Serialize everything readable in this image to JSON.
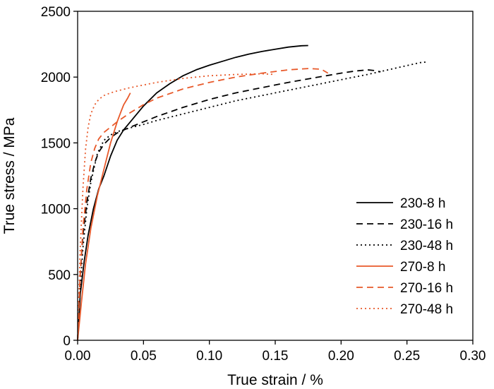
{
  "chart_data": {
    "type": "line",
    "xlabel": "True strain / %",
    "ylabel": "True stress / MPa",
    "xlim": [
      0,
      0.3
    ],
    "ylim": [
      0,
      2500
    ],
    "x_ticks": [
      "0.00",
      "0.05",
      "0.10",
      "0.15",
      "0.20",
      "0.25",
      "0.30"
    ],
    "y_ticks": [
      "0",
      "500",
      "1000",
      "1500",
      "2000",
      "2500"
    ],
    "grid": false,
    "legend_position": "bottom-right",
    "series": [
      {
        "name": "230-8 h",
        "color": "#000000",
        "dash": "solid",
        "x": [
          0,
          0.002,
          0.005,
          0.008,
          0.012,
          0.016,
          0.02,
          0.025,
          0.03,
          0.035,
          0.04,
          0.05,
          0.06,
          0.07,
          0.08,
          0.09,
          0.1,
          0.11,
          0.12,
          0.13,
          0.14,
          0.15,
          0.16,
          0.17,
          0.175
        ],
        "y": [
          0,
          350,
          600,
          800,
          1000,
          1150,
          1250,
          1400,
          1520,
          1600,
          1660,
          1780,
          1880,
          1950,
          2010,
          2055,
          2090,
          2120,
          2150,
          2175,
          2195,
          2212,
          2228,
          2238,
          2240
        ]
      },
      {
        "name": "230-16 h",
        "color": "#000000",
        "dash": "dashed",
        "x": [
          0,
          0.002,
          0.004,
          0.007,
          0.01,
          0.013,
          0.016,
          0.02,
          0.025,
          0.03,
          0.04,
          0.05,
          0.06,
          0.08,
          0.1,
          0.12,
          0.14,
          0.16,
          0.18,
          0.2,
          0.21,
          0.22,
          0.225,
          0.23
        ],
        "y": [
          0,
          500,
          800,
          1050,
          1230,
          1350,
          1430,
          1490,
          1540,
          1575,
          1620,
          1660,
          1700,
          1770,
          1830,
          1880,
          1920,
          1960,
          1995,
          2030,
          2045,
          2055,
          2050,
          2040
        ]
      },
      {
        "name": "230-48 h",
        "color": "#000000",
        "dash": "dotted",
        "x": [
          0,
          0.002,
          0.004,
          0.007,
          0.01,
          0.015,
          0.02,
          0.025,
          0.03,
          0.04,
          0.05,
          0.06,
          0.08,
          0.1,
          0.12,
          0.14,
          0.16,
          0.18,
          0.2,
          0.22,
          0.24,
          0.26,
          0.265
        ],
        "y": [
          0,
          400,
          700,
          1000,
          1200,
          1420,
          1520,
          1560,
          1585,
          1615,
          1640,
          1670,
          1720,
          1770,
          1820,
          1860,
          1900,
          1940,
          1980,
          2020,
          2065,
          2110,
          2115
        ]
      },
      {
        "name": "270-8 h",
        "color": "#e8592a",
        "dash": "solid",
        "x": [
          0,
          0.003,
          0.006,
          0.01,
          0.015,
          0.02,
          0.025,
          0.03,
          0.033,
          0.035,
          0.038,
          0.04
        ],
        "y": [
          0,
          300,
          580,
          850,
          1100,
          1300,
          1500,
          1660,
          1740,
          1790,
          1840,
          1880
        ]
      },
      {
        "name": "270-16 h",
        "color": "#e8592a",
        "dash": "dashed",
        "x": [
          0,
          0.002,
          0.004,
          0.007,
          0.01,
          0.013,
          0.016,
          0.02,
          0.025,
          0.03,
          0.04,
          0.05,
          0.06,
          0.08,
          0.1,
          0.12,
          0.14,
          0.16,
          0.175,
          0.185,
          0.19
        ],
        "y": [
          0,
          500,
          850,
          1150,
          1350,
          1460,
          1530,
          1580,
          1620,
          1660,
          1730,
          1790,
          1840,
          1910,
          1960,
          2000,
          2030,
          2055,
          2065,
          2060,
          2030
        ]
      },
      {
        "name": "270-48 h",
        "color": "#e8592a",
        "dash": "dotted",
        "x": [
          0,
          0.002,
          0.004,
          0.006,
          0.008,
          0.01,
          0.013,
          0.016,
          0.02,
          0.025,
          0.03,
          0.04,
          0.05,
          0.06,
          0.08,
          0.1,
          0.12,
          0.14,
          0.15
        ],
        "y": [
          0,
          700,
          1150,
          1450,
          1620,
          1720,
          1790,
          1830,
          1860,
          1880,
          1895,
          1920,
          1940,
          1960,
          1990,
          2010,
          2020,
          2025,
          2020
        ]
      }
    ]
  }
}
